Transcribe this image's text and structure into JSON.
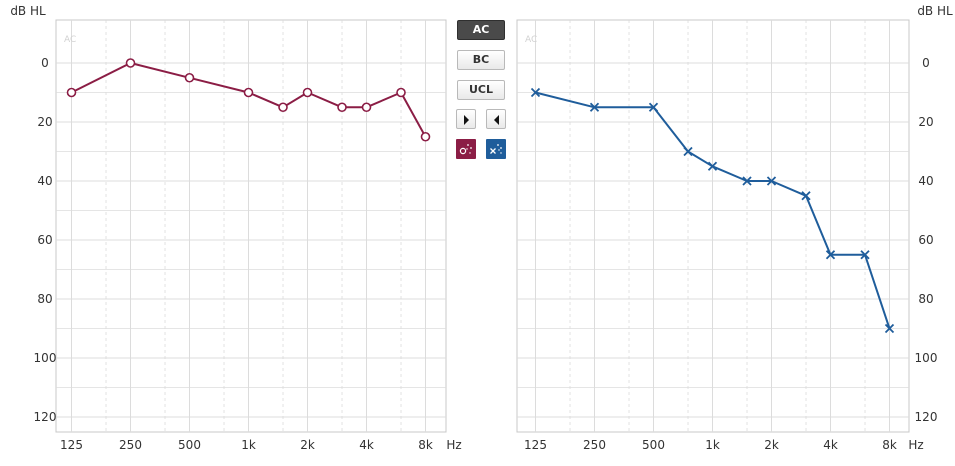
{
  "controls": {
    "buttons": [
      "AC",
      "BC",
      "UCL"
    ],
    "active": "AC"
  },
  "colors": {
    "right_ear": "#8b1d45",
    "left_ear": "#1f5d9b",
    "grid": "#dcdcdc",
    "text": "#333333"
  },
  "chart_data": [
    {
      "type": "line",
      "name": "right-audiogram",
      "watermark": "AC",
      "ylabel": "dB HL",
      "xlabel": "Hz",
      "xticks": [
        "125",
        "250",
        "500",
        "1k",
        "2k",
        "4k",
        "8k"
      ],
      "yticks": [
        "0",
        "20",
        "40",
        "60",
        "80",
        "100",
        "120"
      ],
      "ylim": [
        -10,
        125
      ],
      "y_inverted": true,
      "grid": true,
      "marker": "circle",
      "color": "#8b1d45",
      "x": [
        125,
        250,
        500,
        1000,
        1500,
        2000,
        3000,
        4000,
        6000,
        8000
      ],
      "y": [
        10,
        0,
        5,
        10,
        15,
        10,
        15,
        15,
        10,
        25
      ]
    },
    {
      "type": "line",
      "name": "left-audiogram",
      "watermark": "AC",
      "ylabel": "dB HL",
      "xlabel": "Hz",
      "xticks": [
        "125",
        "250",
        "500",
        "1k",
        "2k",
        "4k",
        "8k"
      ],
      "yticks": [
        "0",
        "20",
        "40",
        "60",
        "80",
        "100",
        "120"
      ],
      "ylim": [
        -10,
        125
      ],
      "y_inverted": true,
      "grid": true,
      "marker": "cross",
      "color": "#1f5d9b",
      "x": [
        125,
        250,
        500,
        750,
        1000,
        1500,
        2000,
        3000,
        4000,
        6000,
        8000
      ],
      "y": [
        10,
        15,
        15,
        30,
        35,
        40,
        40,
        45,
        65,
        65,
        90
      ]
    }
  ]
}
